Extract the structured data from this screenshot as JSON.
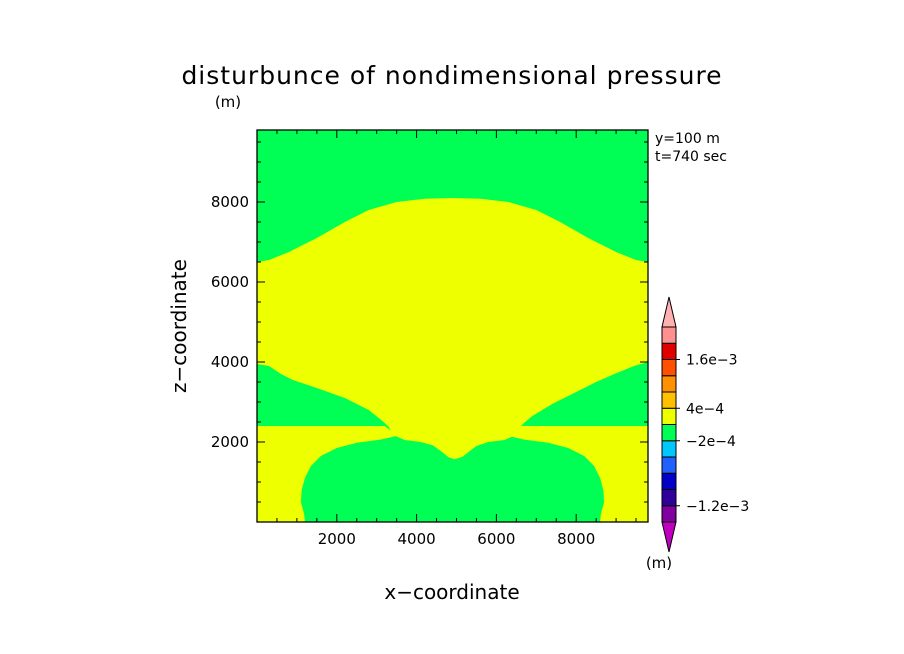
{
  "chart_data": {
    "type": "heatmap",
    "title": "disturbunce of nondimensional pressure",
    "unit_label_top": "(m)",
    "unit_label_colorbar": "(m)",
    "xlabel": "x−coordinate",
    "ylabel": "z−coordinate",
    "xlim": [
      0,
      9800
    ],
    "ylim": [
      0,
      9800
    ],
    "xticks": [
      2000,
      4000,
      6000,
      8000
    ],
    "xtick_labels": [
      "2000",
      "4000",
      "6000",
      "8000"
    ],
    "yticks": [
      2000,
      4000,
      6000,
      8000
    ],
    "ytick_labels": [
      "2000",
      "4000",
      "6000",
      "8000"
    ],
    "annotations": [
      "y=100  m",
      "t=740 sec"
    ],
    "fields": {
      "background_color": "#00ff55",
      "regions": [
        {
          "name": "upper-yellow",
          "color": "#eeff00",
          "polygon": [
            [
              0,
              6500
            ],
            [
              300,
              6550
            ],
            [
              800,
              6750
            ],
            [
              1500,
              7100
            ],
            [
              2200,
              7500
            ],
            [
              2800,
              7800
            ],
            [
              3500,
              8000
            ],
            [
              4200,
              8080
            ],
            [
              4900,
              8100
            ],
            [
              5600,
              8080
            ],
            [
              6300,
              8000
            ],
            [
              7000,
              7800
            ],
            [
              7600,
              7500
            ],
            [
              8300,
              7100
            ],
            [
              9000,
              6750
            ],
            [
              9500,
              6550
            ],
            [
              9800,
              6500
            ],
            [
              9800,
              4000
            ],
            [
              9450,
              3900
            ],
            [
              9000,
              3720
            ],
            [
              8500,
              3500
            ],
            [
              8000,
              3250
            ],
            [
              7400,
              2950
            ],
            [
              6900,
              2650
            ],
            [
              6700,
              2480
            ],
            [
              6600,
              2380
            ],
            [
              6500,
              2180
            ],
            [
              6200,
              2050
            ],
            [
              5800,
              2000
            ],
            [
              5500,
              1900
            ],
            [
              5300,
              1750
            ],
            [
              5150,
              1630
            ],
            [
              4950,
              1570
            ],
            [
              4800,
              1620
            ],
            [
              4600,
              1780
            ],
            [
              4400,
              1920
            ],
            [
              4100,
              2000
            ],
            [
              3700,
              2050
            ],
            [
              3400,
              2180
            ],
            [
              3300,
              2380
            ],
            [
              3150,
              2520
            ],
            [
              2800,
              2800
            ],
            [
              2200,
              3100
            ],
            [
              1500,
              3350
            ],
            [
              900,
              3550
            ],
            [
              600,
              3700
            ],
            [
              300,
              3900
            ],
            [
              0,
              3950
            ]
          ]
        },
        {
          "name": "lower-yellow-left",
          "color": "#eeff00",
          "polygon": [
            [
              0,
              2400
            ],
            [
              3200,
              2400
            ],
            [
              3400,
              2250
            ],
            [
              3500,
              2150
            ],
            [
              3100,
              2060
            ],
            [
              2500,
              1980
            ],
            [
              2000,
              1850
            ],
            [
              1600,
              1650
            ],
            [
              1350,
              1400
            ],
            [
              1200,
              1100
            ],
            [
              1120,
              800
            ],
            [
              1100,
              500
            ],
            [
              1180,
              200
            ],
            [
              1200,
              0
            ],
            [
              0,
              0
            ]
          ]
        },
        {
          "name": "lower-yellow-right",
          "color": "#eeff00",
          "polygon": [
            [
              9800,
              2400
            ],
            [
              6600,
              2400
            ],
            [
              6400,
              2250
            ],
            [
              6300,
              2150
            ],
            [
              6700,
              2060
            ],
            [
              7300,
              1980
            ],
            [
              7800,
              1850
            ],
            [
              8200,
              1650
            ],
            [
              8450,
              1400
            ],
            [
              8600,
              1100
            ],
            [
              8680,
              800
            ],
            [
              8700,
              500
            ],
            [
              8620,
              200
            ],
            [
              8600,
              0
            ],
            [
              9800,
              0
            ]
          ]
        }
      ]
    },
    "colorbar": {
      "levels": [
        {
          "color": "#c000c0"
        },
        {
          "color": "#8000a0"
        },
        {
          "color": "#30009a"
        },
        {
          "color": "#0000c8"
        },
        {
          "color": "#2060ff"
        },
        {
          "color": "#00c8ff"
        },
        {
          "color": "#00ff55"
        },
        {
          "color": "#eeff00"
        },
        {
          "color": "#ffc000"
        },
        {
          "color": "#ff9000"
        },
        {
          "color": "#ff5000"
        },
        {
          "color": "#e00000"
        },
        {
          "color": "#ff9090"
        },
        {
          "color": "#ffb0b0"
        }
      ],
      "labels": [
        {
          "text": "1.6e−3",
          "level_boundary": 11
        },
        {
          "text": "4e−4",
          "level_boundary": 8
        },
        {
          "text": "−2e−4",
          "level_boundary": 6
        },
        {
          "text": "−1.2e−3",
          "level_boundary": 2
        }
      ]
    }
  }
}
